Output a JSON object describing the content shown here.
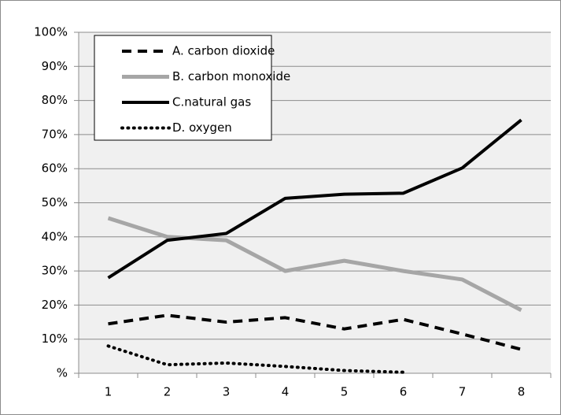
{
  "chart_data": {
    "type": "line",
    "categories": [
      "1",
      "2",
      "3",
      "4",
      "5",
      "6",
      "7",
      "8"
    ],
    "series": [
      {
        "name": "A. carbon dioxide",
        "color": "#000000",
        "dash": "dashed",
        "width": 4,
        "values": [
          14.5,
          17,
          15,
          16.3,
          13,
          15.8,
          11.5,
          7
        ]
      },
      {
        "name": "B. carbon monoxide",
        "color": "#a6a6a6",
        "dash": "solid",
        "width": 5,
        "values": [
          45.5,
          40,
          39,
          30,
          33,
          30,
          27.5,
          18.5
        ]
      },
      {
        "name": "C.natural gas",
        "color": "#000000",
        "dash": "solid",
        "width": 4,
        "values": [
          28,
          39,
          41,
          51.3,
          52.5,
          52.8,
          60.2,
          74.3
        ]
      },
      {
        "name": "D. oxygen",
        "color": "#000000",
        "dash": "dotted",
        "width": 4,
        "values": [
          8,
          2.5,
          3,
          2,
          0.8,
          0.3,
          null,
          null
        ]
      }
    ],
    "ylim": [
      0,
      100
    ],
    "yticks": [
      {
        "value": 0,
        "label": "%"
      },
      {
        "value": 10,
        "label": "10%"
      },
      {
        "value": 20,
        "label": "20%"
      },
      {
        "value": 30,
        "label": "30%"
      },
      {
        "value": 40,
        "label": "40%"
      },
      {
        "value": 50,
        "label": "50%"
      },
      {
        "value": 60,
        "label": "60%"
      },
      {
        "value": 70,
        "label": "70%"
      },
      {
        "value": 80,
        "label": "80%"
      },
      {
        "value": 90,
        "label": "90%"
      },
      {
        "value": 100,
        "label": "100%"
      }
    ],
    "grid": true,
    "legend": "top-left"
  }
}
